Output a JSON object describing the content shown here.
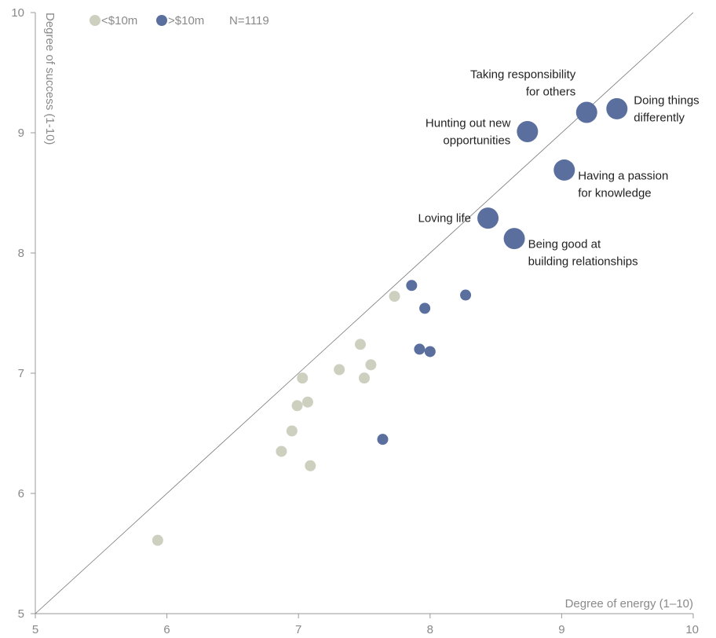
{
  "chart_data": {
    "type": "scatter",
    "xlabel": "Degree of energy (1–10)",
    "ylabel": "Degree of success (1-10)",
    "xlim": [
      5,
      10
    ],
    "ylim": [
      5,
      10
    ],
    "xticks": [
      "5",
      "6",
      "7",
      "8",
      "9",
      "10"
    ],
    "yticks": [
      "5",
      "6",
      "7",
      "8",
      "9",
      "10"
    ],
    "grid": false,
    "legend_position": "top-left",
    "legend": {
      "items": [
        {
          "label": "<$10m",
          "color": "#cdcfbf"
        },
        {
          "label": ">$10m",
          "color": "#5a6f9e"
        }
      ],
      "note": "N=1119"
    },
    "reference_line": {
      "from": [
        5,
        5
      ],
      "to": [
        10,
        10
      ]
    },
    "series": [
      {
        "name": "<$10m",
        "color": "#cdcfbf",
        "points": [
          {
            "x": 5.93,
            "y": 5.61
          },
          {
            "x": 6.87,
            "y": 6.35
          },
          {
            "x": 6.95,
            "y": 6.52
          },
          {
            "x": 6.99,
            "y": 6.73
          },
          {
            "x": 7.03,
            "y": 6.96
          },
          {
            "x": 7.07,
            "y": 6.76
          },
          {
            "x": 7.09,
            "y": 6.23
          },
          {
            "x": 7.31,
            "y": 7.03
          },
          {
            "x": 7.47,
            "y": 7.24
          },
          {
            "x": 7.5,
            "y": 6.96
          },
          {
            "x": 7.55,
            "y": 7.07
          },
          {
            "x": 7.73,
            "y": 7.64
          }
        ]
      },
      {
        "name": ">$10m",
        "color": "#5a6f9e",
        "points": [
          {
            "x": 7.64,
            "y": 6.45
          },
          {
            "x": 7.86,
            "y": 7.73
          },
          {
            "x": 7.92,
            "y": 7.2
          },
          {
            "x": 7.96,
            "y": 7.54
          },
          {
            "x": 8.0,
            "y": 7.18
          },
          {
            "x": 8.27,
            "y": 7.65
          },
          {
            "x": 8.44,
            "y": 8.29,
            "large": true,
            "label": [
              "Loving life"
            ],
            "anchor": "left"
          },
          {
            "x": 8.64,
            "y": 8.12,
            "large": true,
            "label": [
              "Being good at",
              "building relationships"
            ],
            "anchor": "right-below"
          },
          {
            "x": 8.74,
            "y": 9.01,
            "large": true,
            "label": [
              "Hunting out new",
              "opportunities"
            ],
            "anchor": "left"
          },
          {
            "x": 9.02,
            "y": 8.69,
            "large": true,
            "label": [
              "Having a passion",
              "for knowledge"
            ],
            "anchor": "right-below"
          },
          {
            "x": 9.19,
            "y": 9.17,
            "large": true,
            "label": [
              "Taking responsibility",
              "for others"
            ],
            "anchor": "above-left"
          },
          {
            "x": 9.42,
            "y": 9.2,
            "large": true,
            "label": [
              "Doing things",
              "differently"
            ],
            "anchor": "right"
          }
        ]
      }
    ]
  }
}
